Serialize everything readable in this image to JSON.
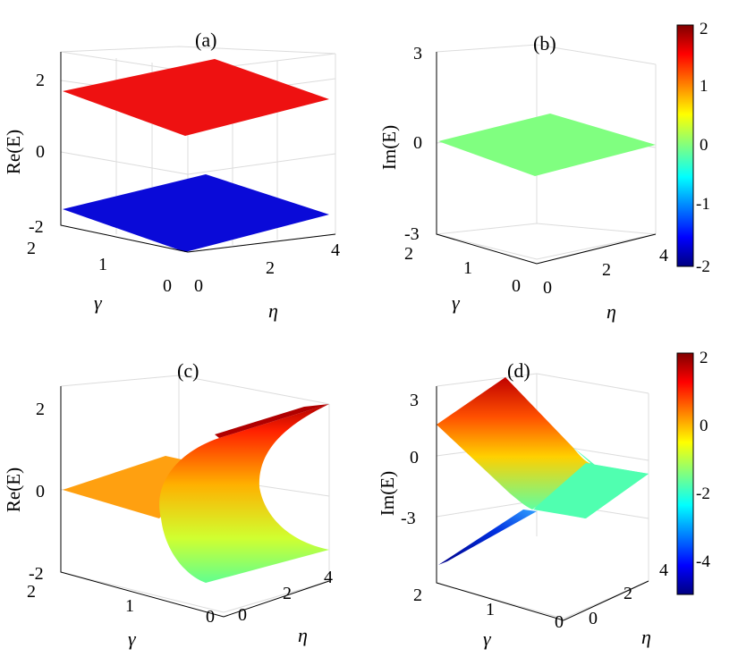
{
  "chart_data": [
    {
      "panel": "(a)",
      "type": "surface3d",
      "zlabel": "Re(E)",
      "xlabel": "γ",
      "ylabel": "η",
      "x_ticks": [
        "0",
        "1",
        "2"
      ],
      "y_ticks": [
        "0",
        "2",
        "4"
      ],
      "z_ticks": [
        "-2",
        "0",
        "2"
      ],
      "xlim": [
        0,
        2
      ],
      "ylim": [
        0,
        4
      ],
      "zlim": [
        -2,
        2
      ],
      "surfaces": [
        {
          "label": "upper",
          "z_value": 1.5,
          "color": "#ee1111"
        },
        {
          "label": "lower",
          "z_value": -1.5,
          "color": "#0a0ad8"
        }
      ]
    },
    {
      "panel": "(b)",
      "type": "surface3d",
      "zlabel": "Im(E)",
      "xlabel": "γ",
      "ylabel": "η",
      "x_ticks": [
        "0",
        "1",
        "2"
      ],
      "y_ticks": [
        "0",
        "2",
        "4"
      ],
      "z_ticks": [
        "-3",
        "0",
        "3"
      ],
      "xlim": [
        0,
        2
      ],
      "ylim": [
        0,
        4
      ],
      "zlim": [
        -3,
        3
      ],
      "surfaces": [
        {
          "label": "flat",
          "z_value": 0,
          "color": "#80ff80"
        }
      ],
      "colorbar": {
        "ticks": [
          "2",
          "1",
          "0",
          "-1",
          "-2"
        ],
        "range": [
          -2,
          2
        ]
      }
    },
    {
      "panel": "(c)",
      "type": "surface3d",
      "zlabel": "Re(E)",
      "xlabel": "γ",
      "ylabel": "η",
      "x_ticks": [
        "0",
        "1",
        "2"
      ],
      "y_ticks": [
        "0",
        "2",
        "4"
      ],
      "z_ticks": [
        "-2",
        "0",
        "2"
      ],
      "xlim": [
        0,
        2
      ],
      "ylim": [
        0,
        4
      ],
      "zlim": [
        -2,
        2
      ],
      "description_values": {
        "flat_sheet_z": 0,
        "curved_sheet_z_range": [
          -1.5,
          1.5
        ]
      }
    },
    {
      "panel": "(d)",
      "type": "surface3d",
      "zlabel": "Im(E)",
      "xlabel": "γ",
      "ylabel": "η",
      "x_ticks": [
        "0",
        "1",
        "2"
      ],
      "y_ticks": [
        "0",
        "2",
        "4"
      ],
      "z_ticks": [
        "-3",
        "0",
        "3"
      ],
      "xlim": [
        0,
        2
      ],
      "ylim": [
        0,
        4
      ],
      "zlim": [
        -5,
        3
      ],
      "colorbar": {
        "ticks": [
          "2",
          "0",
          "-2",
          "-4"
        ],
        "range": [
          -5,
          2.2
        ]
      }
    }
  ],
  "colors": {
    "red": "#e81010",
    "blue": "#0a0ad8",
    "green": "#80ff80",
    "orange": "#ffa010",
    "grid": "#d8d8d8",
    "axis": "#000000"
  }
}
